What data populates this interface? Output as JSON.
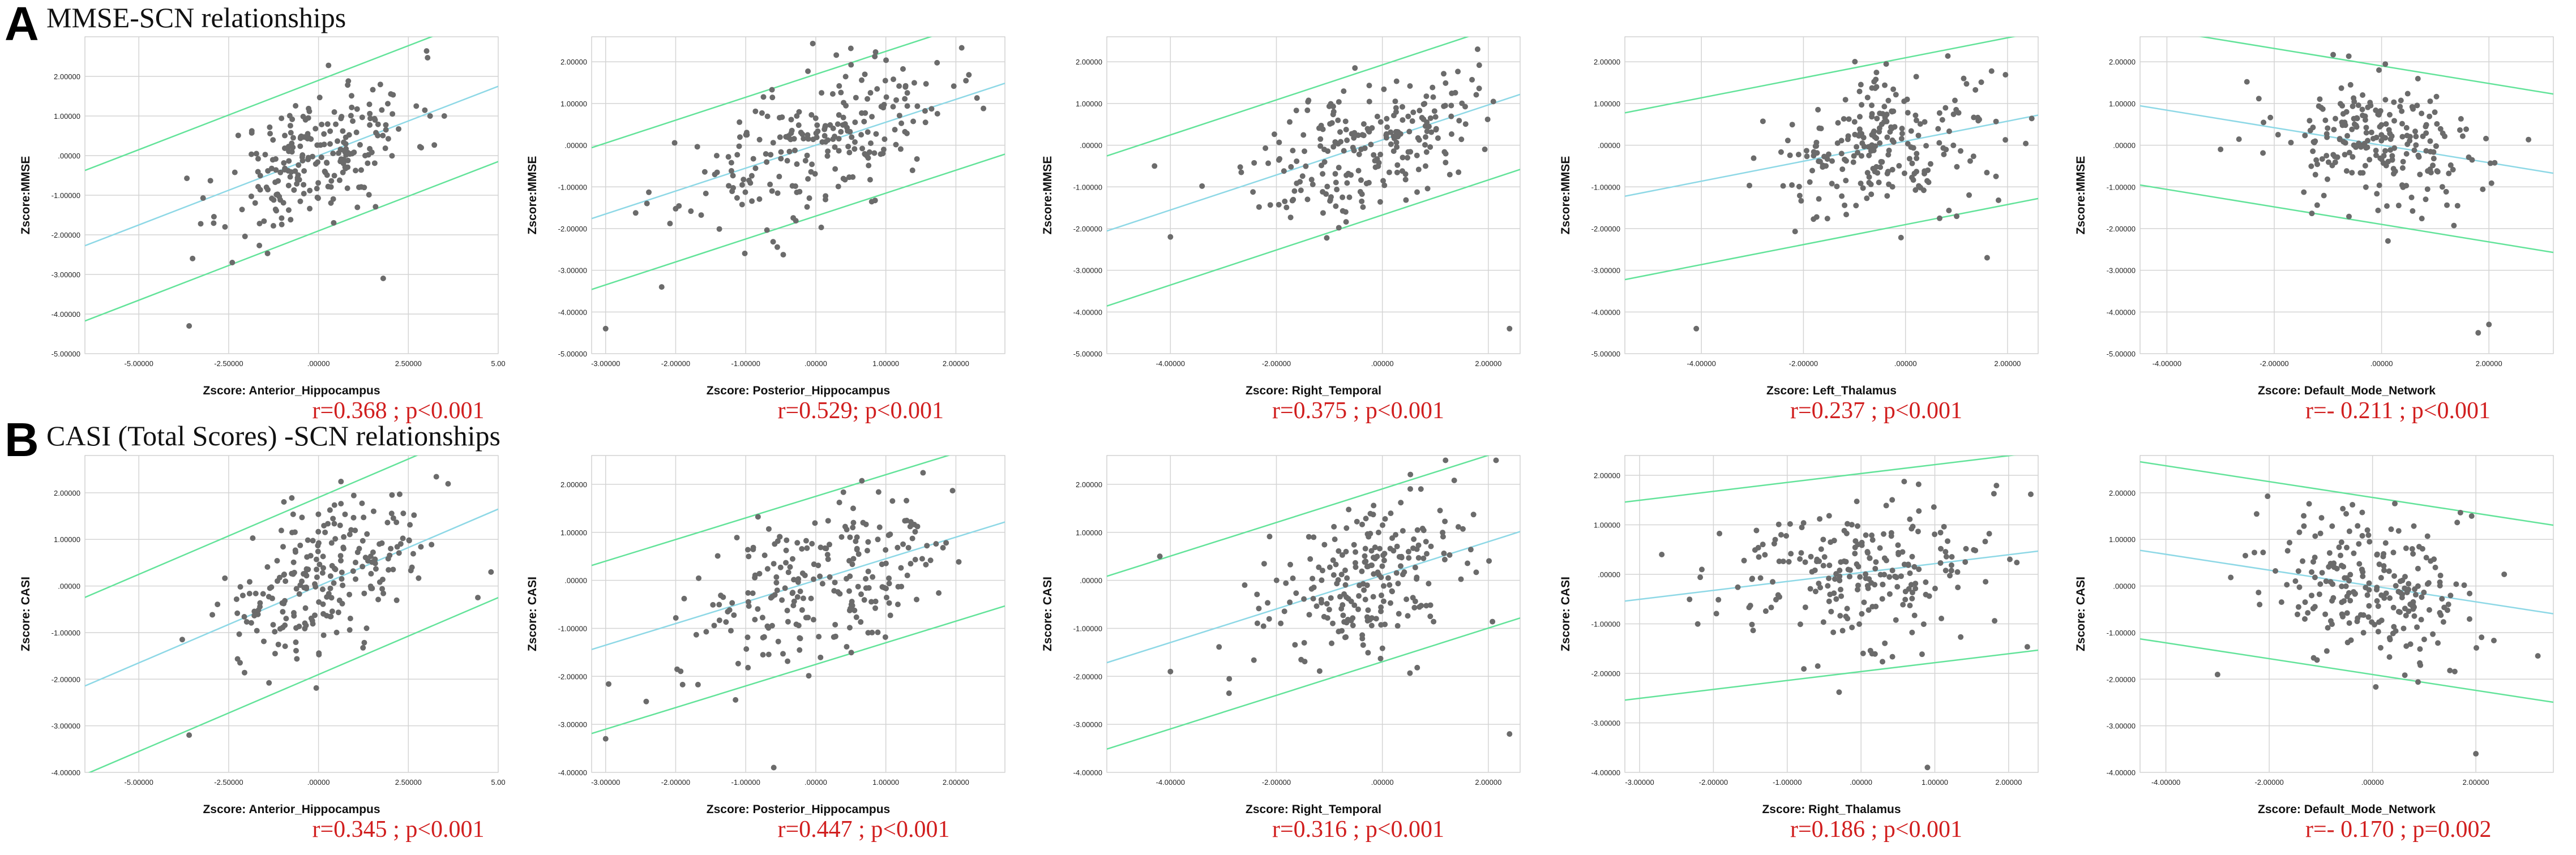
{
  "rows": [
    {
      "letter": "A",
      "title": "MMSE-SCN relationships"
    },
    {
      "letter": "B",
      "title": "CASI (Total Scores) -SCN relationships"
    }
  ],
  "colors": {
    "points": "#6b6b6b",
    "fit_line": "#8ed8e6",
    "ci_line": "#63e39a",
    "stat_text": "#d11f1f",
    "grid": "#d4d4d4"
  },
  "chart_data": [
    {
      "type": "scatter",
      "row": 0,
      "col": 0,
      "ylabel": "Zscore:MMSE",
      "xlabel": "Zscore:  Anterior_Hippocampus",
      "stat": "r=0.368 ; p<0.001",
      "x_ticks": [
        "-5.00000",
        "-2.50000",
        ".00000",
        "2.50000",
        "5.00"
      ],
      "x_tick_vals": [
        -5,
        -2.5,
        0,
        2.5,
        5
      ],
      "y_ticks": [
        "2.00000",
        "1.00000",
        ".00000",
        "-1.00000",
        "-2.00000",
        "-3.00000",
        "-4.00000",
        "-5.00000"
      ],
      "y_tick_vals": [
        2,
        1,
        0,
        -1,
        -2,
        -3,
        -4,
        -5
      ],
      "xlim": [
        -6.5,
        5
      ],
      "ylim": [
        -5,
        3
      ],
      "center": [
        0,
        0
      ],
      "spread": [
        1.3,
        1
      ],
      "slope": 0.35,
      "ci": 1.9,
      "n": 230,
      "seed": 11,
      "outliers": [
        [
          -3.6,
          -4.3
        ],
        [
          3.5,
          1.0
        ],
        [
          1.8,
          -3.1
        ],
        [
          -2.4,
          -2.7
        ]
      ]
    },
    {
      "type": "scatter",
      "row": 0,
      "col": 1,
      "ylabel": "Zscore:MMSE",
      "xlabel": "Zscore:  Posterior_Hippocampus",
      "stat": "r=0.529; p<0.001",
      "x_ticks": [
        "-3.00000",
        "-2.00000",
        "-1.00000",
        ".00000",
        "1.00000",
        "2.00000"
      ],
      "x_tick_vals": [
        -3,
        -2,
        -1,
        0,
        1,
        2
      ],
      "y_ticks": [
        "2.00000",
        "1.00000",
        ".00000",
        "-1.00000",
        "-2.00000",
        "-3.00000",
        "-4.00000",
        "-5.00000"
      ],
      "y_tick_vals": [
        2,
        1,
        0,
        -1,
        -2,
        -3,
        -4,
        -5
      ],
      "xlim": [
        -3.2,
        2.7
      ],
      "ylim": [
        -5,
        2.6
      ],
      "center": [
        0,
        0
      ],
      "spread": [
        0.95,
        1
      ],
      "slope": 0.55,
      "ci": 1.7,
      "n": 230,
      "seed": 23,
      "outliers": [
        [
          -3.0,
          -4.4
        ],
        [
          -2.2,
          -3.4
        ],
        [
          0.7,
          1.7
        ]
      ]
    },
    {
      "type": "scatter",
      "row": 0,
      "col": 2,
      "ylabel": "Zscore:MMSE",
      "xlabel": "Zscore:  Right_Temporal",
      "stat": "r=0.375 ; p<0.001",
      "x_ticks": [
        "-4.00000",
        "-2.00000",
        ".00000",
        "2.00000"
      ],
      "x_tick_vals": [
        -4,
        -2,
        0,
        2
      ],
      "y_ticks": [
        "2.00000",
        "1.00000",
        ".00000",
        "-1.00000",
        "-2.00000",
        "-3.00000",
        "-4.00000",
        "-5.00000"
      ],
      "y_tick_vals": [
        2,
        1,
        0,
        -1,
        -2,
        -3,
        -4,
        -5
      ],
      "xlim": [
        -5.2,
        2.6
      ],
      "ylim": [
        -5,
        2.6
      ],
      "center": [
        -0.3,
        0
      ],
      "spread": [
        1.0,
        1
      ],
      "slope": 0.42,
      "ci": 1.8,
      "n": 230,
      "seed": 37,
      "outliers": [
        [
          -4.3,
          -0.5
        ],
        [
          -4.0,
          -2.2
        ],
        [
          2.4,
          -4.4
        ]
      ]
    },
    {
      "type": "scatter",
      "row": 0,
      "col": 3,
      "ylabel": "Zscore:MMSE",
      "xlabel": "Zscore:  Left_Thalamus",
      "stat": "r=0.237 ; p<0.001",
      "x_ticks": [
        "-4.00000",
        "-2.00000",
        ".00000",
        "2.00000"
      ],
      "x_tick_vals": [
        -4,
        -2,
        0,
        2
      ],
      "y_ticks": [
        "2.00000",
        "1.00000",
        ".00000",
        "-1.00000",
        "-2.00000",
        "-3.00000",
        "-4.00000",
        "-5.00000"
      ],
      "y_tick_vals": [
        2,
        1,
        0,
        -1,
        -2,
        -3,
        -4,
        -5
      ],
      "xlim": [
        -5.5,
        2.6
      ],
      "ylim": [
        -5,
        2.6
      ],
      "center": [
        -0.4,
        0
      ],
      "spread": [
        1.1,
        1
      ],
      "slope": 0.24,
      "ci": 2.0,
      "n": 230,
      "seed": 41,
      "outliers": [
        [
          -4.1,
          -4.4
        ],
        [
          1.6,
          -2.7
        ]
      ]
    },
    {
      "type": "scatter",
      "row": 0,
      "col": 4,
      "ylabel": "Zscore:MMSE",
      "xlabel": "Zscore:  Default_Mode_Network",
      "stat": "r=- 0.211 ; p<0.001",
      "x_ticks": [
        "-4.00000",
        "-2.00000",
        ".00000",
        "2.00000"
      ],
      "x_tick_vals": [
        -4,
        -2,
        0,
        2
      ],
      "y_ticks": [
        "2.00000",
        "1.00000",
        ".00000",
        "-1.00000",
        "-2.00000",
        "-3.00000",
        "-4.00000",
        "-5.00000"
      ],
      "y_tick_vals": [
        2,
        1,
        0,
        -1,
        -2,
        -3,
        -4,
        -5
      ],
      "xlim": [
        -4.5,
        3.2
      ],
      "ylim": [
        -5,
        2.6
      ],
      "center": [
        0,
        0
      ],
      "spread": [
        1.0,
        1
      ],
      "slope": -0.21,
      "ci": 1.9,
      "n": 230,
      "seed": 53,
      "outliers": [
        [
          1.8,
          -4.5
        ],
        [
          2.0,
          -4.3
        ],
        [
          -3.0,
          -0.1
        ]
      ]
    },
    {
      "type": "scatter",
      "row": 1,
      "col": 0,
      "ylabel": "Zscore: CASI",
      "xlabel": "Zscore:  Anterior_Hippocampus",
      "stat": "r=0.345 ; p<0.001",
      "x_ticks": [
        "-5.00000",
        "-2.50000",
        ".00000",
        "2.50000",
        "5.00"
      ],
      "x_tick_vals": [
        -5,
        -2.5,
        0,
        2.5,
        5
      ],
      "y_ticks": [
        "2.00000",
        "1.00000",
        ".00000",
        "-1.00000",
        "-2.00000",
        "-3.00000",
        "-4.00000"
      ],
      "y_tick_vals": [
        2,
        1,
        0,
        -1,
        -2,
        -3,
        -4
      ],
      "xlim": [
        -6.5,
        5
      ],
      "ylim": [
        -4,
        2.8
      ],
      "center": [
        0,
        0
      ],
      "spread": [
        1.3,
        1
      ],
      "slope": 0.33,
      "ci": 1.9,
      "n": 230,
      "seed": 67,
      "outliers": [
        [
          -3.6,
          -3.2
        ],
        [
          4.8,
          0.3
        ],
        [
          2.6,
          0.4
        ]
      ]
    },
    {
      "type": "scatter",
      "row": 1,
      "col": 1,
      "ylabel": "Zscore: CASI",
      "xlabel": "Zscore:  Posterior_Hippocampus",
      "stat": "r=0.447 ; p<0.001",
      "x_ticks": [
        "-3.00000",
        "-2.00000",
        "-1.00000",
        ".00000",
        "1.00000",
        "2.00000"
      ],
      "x_tick_vals": [
        -3,
        -2,
        -1,
        0,
        1,
        2
      ],
      "y_ticks": [
        "2.00000",
        "1.00000",
        ".00000",
        "-1.00000",
        "-2.00000",
        "-3.00000",
        "-4.00000"
      ],
      "y_tick_vals": [
        2,
        1,
        0,
        -1,
        -2,
        -3,
        -4
      ],
      "xlim": [
        -3.2,
        2.7
      ],
      "ylim": [
        -4,
        2.6
      ],
      "center": [
        0,
        0
      ],
      "spread": [
        0.95,
        1
      ],
      "slope": 0.45,
      "ci": 1.75,
      "n": 230,
      "seed": 79,
      "outliers": [
        [
          -3.0,
          -3.3
        ],
        [
          -0.6,
          -3.9
        ]
      ]
    },
    {
      "type": "scatter",
      "row": 1,
      "col": 2,
      "ylabel": "Zscore: CASI",
      "xlabel": "Zscore:  Right_Temporal",
      "stat": "r=0.316 ; p<0.001",
      "x_ticks": [
        "-4.00000",
        "-2.00000",
        ".00000",
        "2.00000"
      ],
      "x_tick_vals": [
        -4,
        -2,
        0,
        2
      ],
      "y_ticks": [
        "2.00000",
        "1.00000",
        ".00000",
        "-1.00000",
        "-2.00000",
        "-3.00000",
        "-4.00000"
      ],
      "y_tick_vals": [
        2,
        1,
        0,
        -1,
        -2,
        -3,
        -4
      ],
      "xlim": [
        -5.2,
        2.6
      ],
      "ylim": [
        -4,
        2.6
      ],
      "center": [
        -0.3,
        0
      ],
      "spread": [
        1.0,
        1
      ],
      "slope": 0.35,
      "ci": 1.8,
      "n": 230,
      "seed": 83,
      "outliers": [
        [
          -4.2,
          0.5
        ],
        [
          -4.0,
          -1.9
        ],
        [
          2.4,
          -3.2
        ]
      ]
    },
    {
      "type": "scatter",
      "row": 1,
      "col": 3,
      "ylabel": "Zscore: CASI",
      "xlabel": "Zscore:  Right_Thalamus",
      "stat": "r=0.186 ; p<0.001",
      "x_ticks": [
        "-3.00000",
        "-2.00000",
        "-1.00000",
        ".00000",
        "1.00000",
        "2.00000"
      ],
      "x_tick_vals": [
        -3,
        -2,
        -1,
        0,
        1,
        2
      ],
      "y_ticks": [
        "2.00000",
        "1.00000",
        ".00000",
        "-1.00000",
        "-2.00000",
        "-3.00000",
        "-4.00000"
      ],
      "y_tick_vals": [
        2,
        1,
        0,
        -1,
        -2,
        -3,
        -4
      ],
      "xlim": [
        -3.2,
        2.4
      ],
      "ylim": [
        -4,
        2.4
      ],
      "center": [
        -0.2,
        0
      ],
      "spread": [
        1.0,
        1
      ],
      "slope": 0.18,
      "ci": 2.0,
      "n": 230,
      "seed": 97,
      "outliers": [
        [
          -2.7,
          0.4
        ],
        [
          0.9,
          -3.9
        ]
      ]
    },
    {
      "type": "scatter",
      "row": 1,
      "col": 4,
      "ylabel": "Zscore: CASI",
      "xlabel": "Zscore:  Default_Mode_Network",
      "stat": "r=- 0.170 ; p=0.002",
      "x_ticks": [
        "-4.00000",
        "-2.00000",
        ".00000",
        "2.00000"
      ],
      "x_tick_vals": [
        -4,
        -2,
        0,
        2
      ],
      "y_ticks": [
        "2.00000",
        "1.00000",
        ".00000",
        "-1.00000",
        "-2.00000",
        "-3.00000",
        "-4.00000"
      ],
      "y_tick_vals": [
        2,
        1,
        0,
        -1,
        -2,
        -3,
        -4
      ],
      "xlim": [
        -4.5,
        3.5
      ],
      "ylim": [
        -4,
        2.8
      ],
      "center": [
        0,
        0
      ],
      "spread": [
        1.0,
        1
      ],
      "slope": -0.17,
      "ci": 1.9,
      "n": 230,
      "seed": 101,
      "outliers": [
        [
          2.0,
          -3.6
        ],
        [
          3.2,
          -1.5
        ],
        [
          -3.0,
          -1.9
        ]
      ]
    }
  ]
}
